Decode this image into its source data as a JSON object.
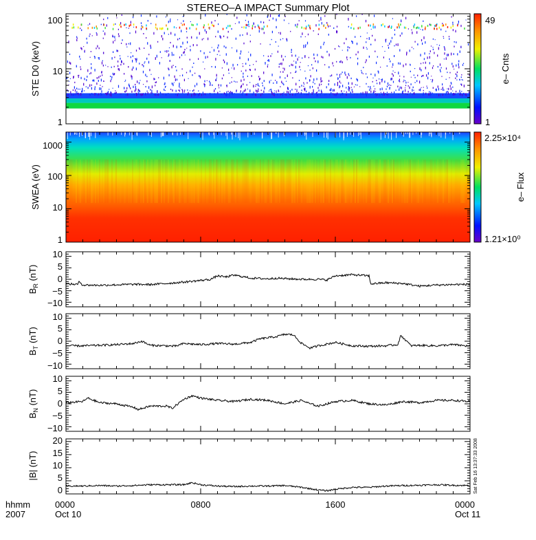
{
  "title": "STEREO–A IMPACT Summary Plot",
  "timestamp": "Sat Feb 16 13:37:33 2008",
  "x_axis": {
    "row1_labels": [
      "hhmm",
      "0000",
      "0800",
      "1600",
      "0000"
    ],
    "row2_labels": [
      "2007",
      "Oct 10",
      "Oct 11"
    ]
  },
  "panels": {
    "ste": {
      "ylabel": "STE D0 (keV)",
      "yticks": [
        "100",
        "10",
        "1"
      ],
      "colorbar_title": "e– Cnts",
      "colorbar_max": "49",
      "colorbar_min": "1"
    },
    "swea": {
      "ylabel": "SWEA (eV)",
      "yticks": [
        "1000",
        "100",
        "10",
        "1"
      ],
      "colorbar_title": "e– Flux",
      "colorbar_max": "2.25×10⁴",
      "colorbar_min": "1.21×10⁰"
    },
    "br": {
      "ylabel": "B_R (nT)",
      "ylabel_main": "B",
      "ylabel_sub": "R",
      "ylabel_unit": " (nT)",
      "yticks": [
        "10",
        "5",
        "0",
        "−5",
        "−10"
      ]
    },
    "bt": {
      "ylabel": "B_T (nT)",
      "ylabel_main": "B",
      "ylabel_sub": "T",
      "ylabel_unit": " (nT)",
      "yticks": [
        "10",
        "5",
        "0",
        "−5",
        "−10"
      ]
    },
    "bn": {
      "ylabel": "B_N (nT)",
      "ylabel_main": "B",
      "ylabel_sub": "N",
      "ylabel_unit": " (nT)",
      "yticks": [
        "10",
        "5",
        "0",
        "−5",
        "−10"
      ]
    },
    "bmag": {
      "ylabel": "|B| (nT)",
      "yticks": [
        "20",
        "15",
        "10",
        "5",
        "0"
      ]
    }
  },
  "colors": {
    "line": "#000000",
    "axis": "#000000",
    "background": "#ffffff"
  },
  "chart_data": [
    {
      "type": "heatmap",
      "name": "STE D0",
      "x_range_hours": [
        0,
        24
      ],
      "y_range_keV": [
        1,
        100
      ],
      "y_scale": "log",
      "color_range": [
        1,
        49
      ],
      "description_bands": [
        {
          "y_keV": [
            1.9,
            2.4
          ],
          "level": "green"
        },
        {
          "y_keV": [
            2.4,
            3.5
          ],
          "level": "cyan-blue"
        },
        {
          "y_keV": [
            3.5,
            100
          ],
          "level": "sparse blue/purple"
        },
        {
          "y_keV": [
            55,
            68
          ],
          "level": "sparse yellow/green/red dashes"
        }
      ]
    },
    {
      "type": "heatmap",
      "name": "SWEA",
      "x_range_hours": [
        0,
        24
      ],
      "y_range_eV": [
        1,
        2000
      ],
      "y_scale": "log",
      "color_range": [
        1.21,
        22500
      ],
      "description_bands": [
        {
          "y_eV": [
            1000,
            2000
          ],
          "level": "blue"
        },
        {
          "y_eV": [
            400,
            1000
          ],
          "level": "cyan/green"
        },
        {
          "y_eV": [
            100,
            400
          ],
          "level": "green/yellow"
        },
        {
          "y_eV": [
            20,
            100
          ],
          "level": "orange"
        },
        {
          "y_eV": [
            1,
            20
          ],
          "level": "red"
        }
      ]
    },
    {
      "type": "line",
      "name": "B_R",
      "ylim": [
        -12,
        12
      ],
      "x": [
        0,
        0.7,
        0.8,
        1,
        2,
        3,
        4,
        5,
        6,
        7,
        8,
        8.6,
        9,
        9.5,
        10,
        11,
        12,
        12.5,
        13,
        14,
        15,
        15.5,
        16,
        17,
        18,
        18.1,
        19,
        20,
        21,
        22,
        23,
        24
      ],
      "values": [
        -2,
        -2.2,
        -1,
        -2.5,
        -2.6,
        -2.4,
        -2.2,
        -2.3,
        -1.8,
        -1.2,
        -0.5,
        0,
        1.5,
        1,
        1.8,
        0.5,
        0.2,
        0.5,
        0.3,
        0,
        0,
        -0.3,
        1.5,
        2,
        1.5,
        -2,
        -1.5,
        -1.8,
        -3,
        -2.5,
        -2.3,
        -2.2
      ]
    },
    {
      "type": "line",
      "name": "B_T",
      "ylim": [
        -12,
        12
      ],
      "x": [
        0,
        1,
        2,
        3,
        4,
        4.5,
        5,
        6,
        6.5,
        7,
        8,
        9,
        10,
        11,
        11.5,
        12,
        12.5,
        13,
        13.5,
        14,
        14.5,
        15,
        16,
        17,
        18,
        19,
        19.7,
        19.9,
        20.5,
        21,
        22,
        23,
        24
      ],
      "values": [
        -2,
        -2,
        -1.8,
        -1.5,
        -1,
        0,
        -1.8,
        -2,
        -2.2,
        -1,
        -1.5,
        -1,
        -1.3,
        -0.5,
        1,
        1.5,
        2,
        3,
        2.8,
        -1,
        -3,
        -2,
        -0.5,
        -2,
        -2.2,
        -2,
        -1.5,
        2.5,
        -2,
        -1.8,
        -2,
        -1.5,
        -2.2
      ]
    },
    {
      "type": "line",
      "name": "B_N",
      "ylim": [
        -12,
        12
      ],
      "x": [
        0,
        1,
        1.3,
        2,
        3,
        4,
        4.3,
        5,
        6,
        6.3,
        7,
        7.5,
        8,
        9,
        10,
        11,
        12,
        13,
        14,
        14.5,
        15,
        16,
        17,
        18,
        19,
        20,
        21,
        22,
        23,
        24
      ],
      "values": [
        0.5,
        1,
        2.5,
        0.5,
        0,
        -1.5,
        -2.5,
        -1,
        -1,
        -2,
        2,
        3.5,
        2.5,
        1.5,
        1,
        2,
        1.5,
        0,
        1.5,
        0,
        -1,
        1,
        1.5,
        0,
        -0.5,
        1,
        0.5,
        1.5,
        1.5,
        1
      ]
    },
    {
      "type": "line",
      "name": "|B|",
      "ylim": [
        0,
        21
      ],
      "x": [
        0,
        1,
        2,
        3,
        4,
        5,
        6,
        7,
        7.5,
        8,
        9,
        10,
        11,
        12,
        13,
        14,
        15,
        15.5,
        16,
        17,
        18,
        19,
        20,
        21,
        22,
        23,
        24
      ],
      "values": [
        3,
        3,
        3.2,
        3,
        3.2,
        3.5,
        3.5,
        3.5,
        4.3,
        3.5,
        3,
        2.8,
        3,
        3,
        3.2,
        2.5,
        1.5,
        1.2,
        1.8,
        2.5,
        2.5,
        3,
        3.2,
        3.3,
        3.5,
        3.3,
        3.2
      ]
    }
  ]
}
